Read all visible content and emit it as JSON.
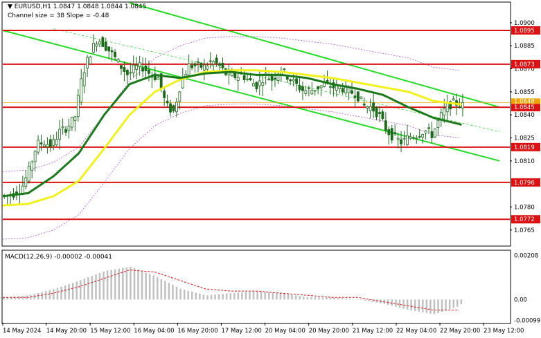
{
  "header": {
    "symbol_line": "EURUSD,H1  1.0847 1.0848 1.0844 1.0845",
    "channel_line": "Channel size = 38 Slope = -0.48",
    "macd_label": "MACD(12,26,9) -0.00002 -0.00041"
  },
  "colors": {
    "background": "#ffffff",
    "candle": "#1b6b1b",
    "ma_green": "#1a7a1a",
    "ma_yellow": "#f2f21a",
    "channel": "#22dd22",
    "level": "#dd1111",
    "level_label_bg": "#dd1111",
    "envelope": "#b04fd0",
    "macd_hist": "#c0c0c0",
    "macd_signal": "#dd1111"
  },
  "chart_data": {
    "type": "candlestick",
    "symbol": "EURUSD",
    "timeframe": "H1",
    "ylim": [
      1.0755,
      1.0913
    ],
    "y_ticks": [
      1.0765,
      1.078,
      1.0796,
      1.081,
      1.0819,
      1.0825,
      1.084,
      1.0845,
      1.0855,
      1.087,
      1.0873,
      1.0885,
      1.0895,
      1.09
    ],
    "price_ticks": [
      "1.0900",
      "1.0885",
      "1.0870",
      "1.0855",
      "1.0840",
      "1.0825",
      "1.0810",
      "1.0780",
      "1.0765"
    ],
    "levels": [
      {
        "label": "1.0895",
        "value": 1.0895
      },
      {
        "label": "1.0873",
        "value": 1.0873
      },
      {
        "label": "1.0845",
        "value": 1.0845
      },
      {
        "label": "1.0819",
        "value": 1.0819
      },
      {
        "label": "1.0796",
        "value": 1.0796
      },
      {
        "label": "1.0772",
        "value": 1.0772
      }
    ],
    "current_price": {
      "label": "1.0848",
      "value": 1.0848
    },
    "x_labels": [
      "14 May 2024",
      "14 May 20:00",
      "15 May 12:00",
      "16 May 04:00",
      "16 May 20:00",
      "17 May 12:00",
      "20 May 04:00",
      "20 May 20:00",
      "21 May 12:00",
      "22 May 04:00",
      "22 May 20:00",
      "23 May 12:00"
    ],
    "x_label_pos": [
      0.0,
      0.0857,
      0.1724,
      0.2586,
      0.3448,
      0.431,
      0.5172,
      0.6034,
      0.6897,
      0.7759,
      0.8621,
      0.9483
    ],
    "macd_ylim": [
      -0.0011,
      0.0023
    ],
    "macd_ticks": [
      "0.00208",
      "0.00",
      "-0.00099"
    ],
    "macd_tick_values": [
      0.00208,
      0.0,
      -0.00099
    ],
    "anchors": [
      [
        0.0,
        1.0787
      ],
      [
        0.02,
        1.0788
      ],
      [
        0.04,
        1.0792
      ],
      [
        0.055,
        1.0804
      ],
      [
        0.07,
        1.0821
      ],
      [
        0.085,
        1.0822
      ],
      [
        0.1,
        1.082
      ],
      [
        0.115,
        1.0829
      ],
      [
        0.13,
        1.0832
      ],
      [
        0.145,
        1.0838
      ],
      [
        0.16,
        1.0866
      ],
      [
        0.175,
        1.088
      ],
      [
        0.19,
        1.089
      ],
      [
        0.205,
        1.0885
      ],
      [
        0.22,
        1.0879
      ],
      [
        0.235,
        1.0872
      ],
      [
        0.25,
        1.0866
      ],
      [
        0.265,
        1.0871
      ],
      [
        0.28,
        1.0871
      ],
      [
        0.295,
        1.0866
      ],
      [
        0.31,
        1.0864
      ],
      [
        0.325,
        1.0846
      ],
      [
        0.34,
        1.0842
      ],
      [
        0.355,
        1.0862
      ],
      [
        0.37,
        1.0872
      ],
      [
        0.385,
        1.0872
      ],
      [
        0.4,
        1.0871
      ],
      [
        0.415,
        1.0875
      ],
      [
        0.43,
        1.0872
      ],
      [
        0.445,
        1.0866
      ],
      [
        0.46,
        1.0865
      ],
      [
        0.475,
        1.0866
      ],
      [
        0.49,
        1.0862
      ],
      [
        0.505,
        1.0859
      ],
      [
        0.52,
        1.0866
      ],
      [
        0.535,
        1.0863
      ],
      [
        0.55,
        1.087
      ],
      [
        0.565,
        1.0865
      ],
      [
        0.58,
        1.086
      ],
      [
        0.595,
        1.0856
      ],
      [
        0.61,
        1.0856
      ],
      [
        0.625,
        1.0858
      ],
      [
        0.64,
        1.086
      ],
      [
        0.655,
        1.0858
      ],
      [
        0.67,
        1.0858
      ],
      [
        0.685,
        1.0855
      ],
      [
        0.7,
        1.0854
      ],
      [
        0.715,
        1.0846
      ],
      [
        0.73,
        1.0845
      ],
      [
        0.745,
        1.084
      ],
      [
        0.76,
        1.083
      ],
      [
        0.775,
        1.0825
      ],
      [
        0.79,
        1.0822
      ],
      [
        0.805,
        1.0826
      ],
      [
        0.82,
        1.0827
      ],
      [
        0.835,
        1.083
      ],
      [
        0.85,
        1.0827
      ],
      [
        0.865,
        1.0838
      ],
      [
        0.88,
        1.0846
      ],
      [
        0.895,
        1.0848
      ],
      [
        0.91,
        1.0846
      ]
    ],
    "ma_green": [
      [
        0.0,
        1.0787
      ],
      [
        0.05,
        1.0789
      ],
      [
        0.1,
        1.08
      ],
      [
        0.15,
        1.0815
      ],
      [
        0.2,
        1.084
      ],
      [
        0.25,
        1.086
      ],
      [
        0.3,
        1.0866
      ],
      [
        0.35,
        1.0864
      ],
      [
        0.4,
        1.0867
      ],
      [
        0.45,
        1.0868
      ],
      [
        0.5,
        1.0866
      ],
      [
        0.55,
        1.0866
      ],
      [
        0.6,
        1.0864
      ],
      [
        0.65,
        1.086
      ],
      [
        0.7,
        1.0857
      ],
      [
        0.75,
        1.0853
      ],
      [
        0.8,
        1.0845
      ],
      [
        0.85,
        1.0838
      ],
      [
        0.9,
        1.0834
      ],
      [
        0.91,
        1.0833
      ]
    ],
    "ma_yellow": [
      [
        0.0,
        1.0781
      ],
      [
        0.05,
        1.0782
      ],
      [
        0.1,
        1.0787
      ],
      [
        0.15,
        1.0797
      ],
      [
        0.2,
        1.0818
      ],
      [
        0.25,
        1.084
      ],
      [
        0.3,
        1.0855
      ],
      [
        0.35,
        1.0863
      ],
      [
        0.4,
        1.0868
      ],
      [
        0.45,
        1.0869
      ],
      [
        0.5,
        1.0869
      ],
      [
        0.55,
        1.0868
      ],
      [
        0.6,
        1.0866
      ],
      [
        0.65,
        1.0864
      ],
      [
        0.7,
        1.0861
      ],
      [
        0.75,
        1.0858
      ],
      [
        0.8,
        1.0855
      ],
      [
        0.85,
        1.0849
      ],
      [
        0.9,
        1.0847
      ],
      [
        0.91,
        1.0846
      ]
    ],
    "channel_lines": [
      {
        "from": [
          0.0,
          1.0895
        ],
        "to": [
          0.98,
          1.081
        ]
      },
      {
        "from": [
          0.25,
          1.0913
        ],
        "to": [
          0.98,
          1.0845
        ]
      }
    ],
    "macd": {
      "hist": [
        [
          0.0,
          0.0001
        ],
        [
          0.05,
          0.0002
        ],
        [
          0.1,
          0.0005
        ],
        [
          0.15,
          0.0009
        ],
        [
          0.2,
          0.00135
        ],
        [
          0.25,
          0.00155
        ],
        [
          0.3,
          0.0011
        ],
        [
          0.35,
          0.0005
        ],
        [
          0.4,
          0.0002
        ],
        [
          0.45,
          0.0003
        ],
        [
          0.5,
          0.0004
        ],
        [
          0.55,
          0.0003
        ],
        [
          0.6,
          0.0001
        ],
        [
          0.65,
          0.0001
        ],
        [
          0.7,
          0.0
        ],
        [
          0.75,
          -0.0002
        ],
        [
          0.8,
          -0.0005
        ],
        [
          0.85,
          -0.0007
        ],
        [
          0.9,
          -0.0003
        ],
        [
          0.91,
          0.0
        ]
      ],
      "signal": [
        [
          0.0,
          0.0001
        ],
        [
          0.05,
          0.0001
        ],
        [
          0.1,
          0.0003
        ],
        [
          0.15,
          0.0006
        ],
        [
          0.2,
          0.001
        ],
        [
          0.25,
          0.0014
        ],
        [
          0.3,
          0.0013
        ],
        [
          0.35,
          0.0009
        ],
        [
          0.4,
          0.0005
        ],
        [
          0.45,
          0.0004
        ],
        [
          0.5,
          0.0004
        ],
        [
          0.55,
          0.0003
        ],
        [
          0.6,
          0.0002
        ],
        [
          0.65,
          0.0001
        ],
        [
          0.7,
          0.0001
        ],
        [
          0.75,
          -0.0001
        ],
        [
          0.8,
          -0.0003
        ],
        [
          0.85,
          -0.0005
        ],
        [
          0.9,
          -0.0005
        ],
        [
          0.91,
          -0.0004
        ]
      ]
    }
  }
}
